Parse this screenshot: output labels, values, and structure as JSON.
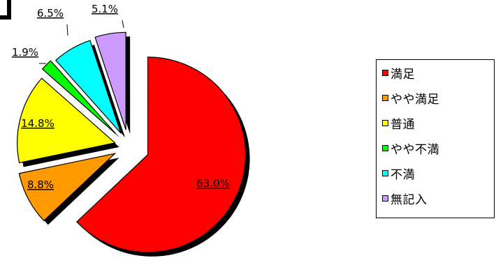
{
  "chart_data": {
    "type": "pie",
    "exploded": true,
    "value_format": "percent",
    "slices": [
      {
        "label": "満足",
        "value": 63.0,
        "display": "63.0%",
        "color": "#ff0000"
      },
      {
        "label": "やや満足",
        "value": 8.8,
        "display": "8.8%",
        "color": "#ff9900"
      },
      {
        "label": "普通",
        "value": 14.8,
        "display": "14.8%",
        "color": "#ffff00"
      },
      {
        "label": "やや不満",
        "value": 1.9,
        "display": "1.9%",
        "color": "#00ff00"
      },
      {
        "label": "不満",
        "value": 6.5,
        "display": "6.5%",
        "color": "#00ffff"
      },
      {
        "label": "無記入",
        "value": 5.1,
        "display": "5.1%",
        "color": "#cc99ff"
      }
    ],
    "legend": {
      "position": "right"
    }
  }
}
